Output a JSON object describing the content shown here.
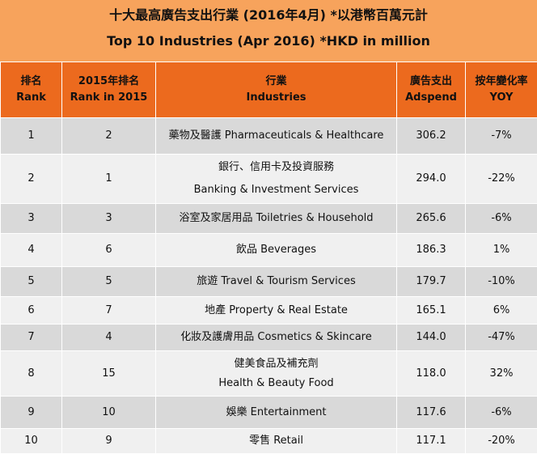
{
  "title": {
    "zh": "十大最高廣告支出行業 (2016年4月) *以港幣百萬元計",
    "en": "Top 10 Industries (Apr 2016) *HKD in million"
  },
  "headers": [
    {
      "zh": "排名 Rank",
      "en": ""
    },
    {
      "zh": "2015年排名",
      "en": "Rank in 2015"
    },
    {
      "zh": "行業",
      "en": "Industries"
    },
    {
      "zh": "廣告支出",
      "en": "Adspend"
    },
    {
      "zh": "按年變化率",
      "en": "YOY"
    }
  ],
  "rows": [
    {
      "rank": "1",
      "rank2015": "2",
      "industry1": "藥物及醫護 Pharmaceuticals & Healthcare",
      "industry2": "",
      "adspend": "306.2",
      "yoy": "-7%"
    },
    {
      "rank": "2",
      "rank2015": "1",
      "industry1": "銀行、信用卡及投資服務",
      "industry2": "Banking & Investment Services",
      "adspend": "294.0",
      "yoy": "-22%"
    },
    {
      "rank": "3",
      "rank2015": "3",
      "industry1": "浴室及家居用品 Toiletries & Household",
      "industry2": "",
      "adspend": "265.6",
      "yoy": "-6%"
    },
    {
      "rank": "4",
      "rank2015": "6",
      "industry1": "飲品  Beverages",
      "industry2": "",
      "adspend": "186.3",
      "yoy": "1%"
    },
    {
      "rank": "5",
      "rank2015": "5",
      "industry1": "旅遊 Travel & Tourism Services",
      "industry2": "",
      "adspend": "179.7",
      "yoy": "-10%"
    },
    {
      "rank": "6",
      "rank2015": "7",
      "industry1": "地產 Property & Real Estate",
      "industry2": "",
      "adspend": "165.1",
      "yoy": "6%"
    },
    {
      "rank": "7",
      "rank2015": "4",
      "industry1": "化妝及護膚用品 Cosmetics & Skincare",
      "industry2": "",
      "adspend": "144.0",
      "yoy": "-47%"
    },
    {
      "rank": "8",
      "rank2015": "15",
      "industry1": "健美食品及補充劑",
      "industry2": "Health & Beauty Food",
      "adspend": "118.0",
      "yoy": "32%"
    },
    {
      "rank": "9",
      "rank2015": "10",
      "industry1": "娛樂 Entertainment",
      "industry2": "",
      "adspend": "117.6",
      "yoy": "-6%"
    },
    {
      "rank": "10",
      "rank2015": "9",
      "industry1": "零售 Retail",
      "industry2": "",
      "adspend": "117.1",
      "yoy": "-20%"
    }
  ]
}
